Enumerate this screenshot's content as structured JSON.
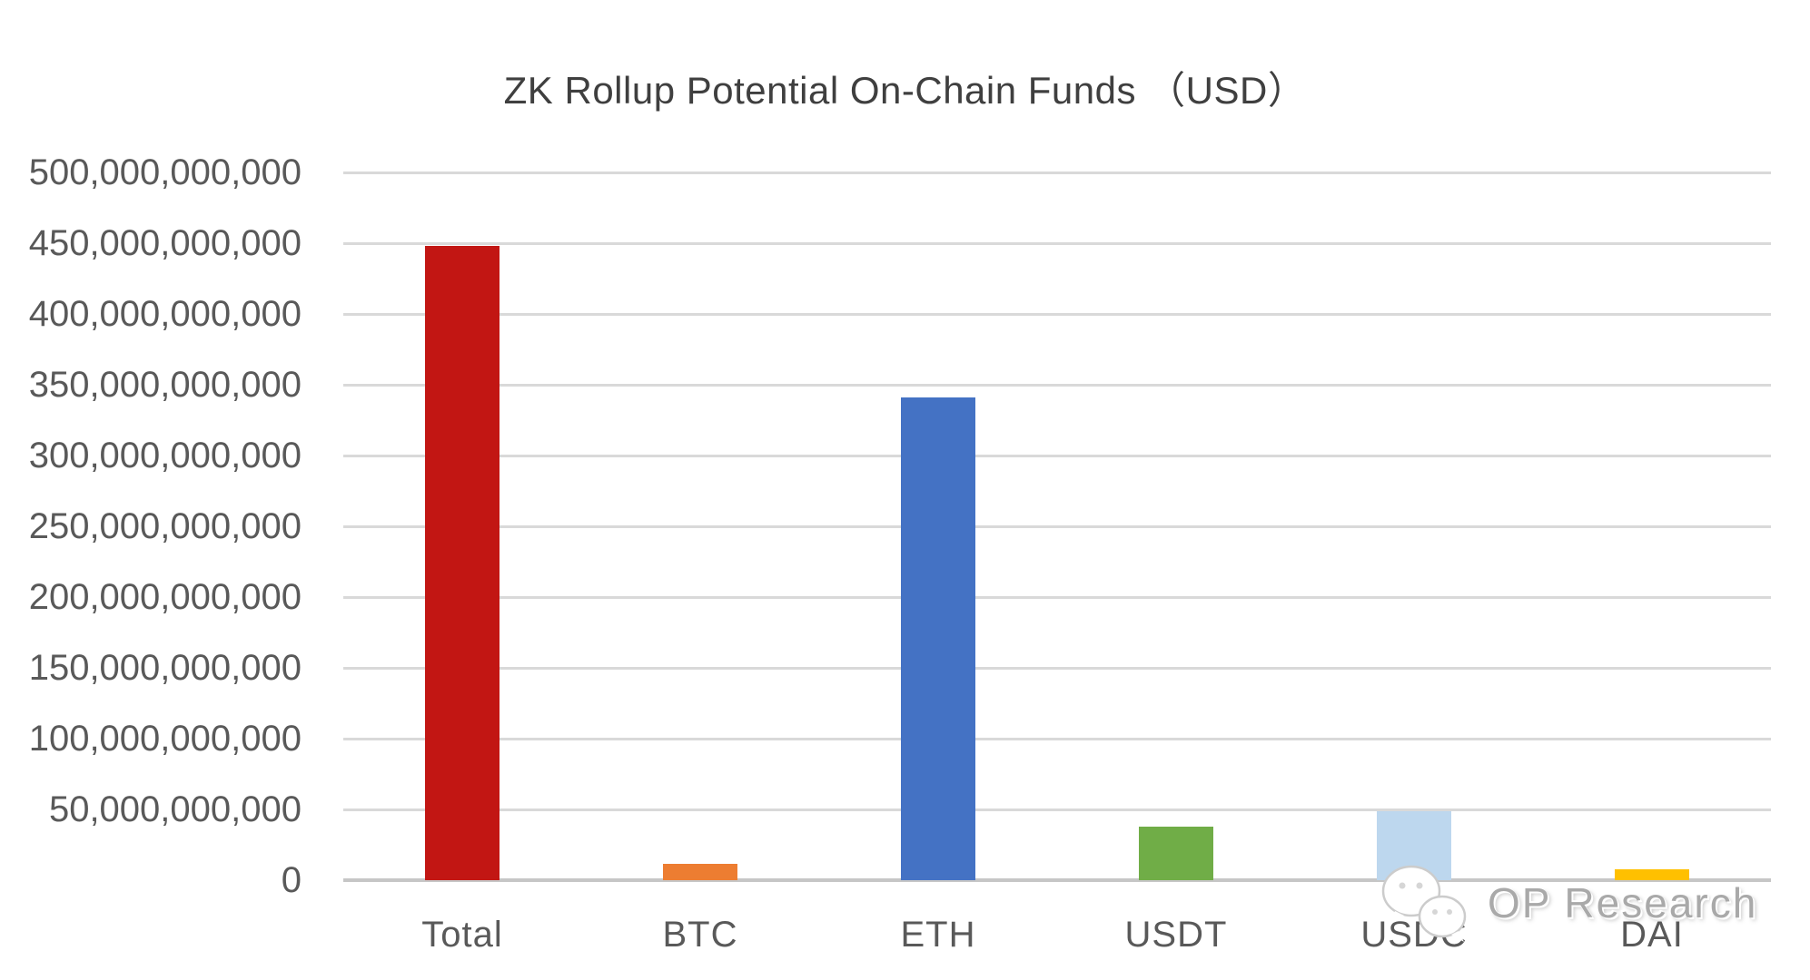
{
  "title": "ZK Rollup Potential On-Chain Funds （USD）",
  "watermark": {
    "text": "OP Research",
    "icon": "wechat-logo"
  },
  "chart_data": {
    "type": "bar",
    "title": "ZK Rollup Potential On-Chain Funds （USD）",
    "categories": [
      "Total",
      "BTC",
      "ETH",
      "USDT",
      "USDC",
      "DAI"
    ],
    "values": [
      448000000000,
      11500000000,
      341000000000,
      38000000000,
      48500000000,
      8000000000
    ],
    "bar_colors": [
      "#c21613",
      "#ed7d31",
      "#4472c4",
      "#70ad47",
      "#bdd7ee",
      "#ffc000"
    ],
    "xlabel": "",
    "ylabel": "",
    "ylim": [
      0,
      500000000000
    ],
    "ytick_step": 50000000000,
    "ytick_labels": [
      "500,000,000,000",
      "450,000,000,000",
      "400,000,000,000",
      "350,000,000,000",
      "300,000,000,000",
      "250,000,000,000",
      "200,000,000,000",
      "150,000,000,000",
      "100,000,000,000",
      "50,000,000,000",
      "0"
    ],
    "grid": true,
    "legend": "none",
    "gridline_color": "#d9d9d9",
    "axis_line_color": "#c6c6c6",
    "tick_label_color": "#595959",
    "title_color": "#3f3f3f"
  }
}
